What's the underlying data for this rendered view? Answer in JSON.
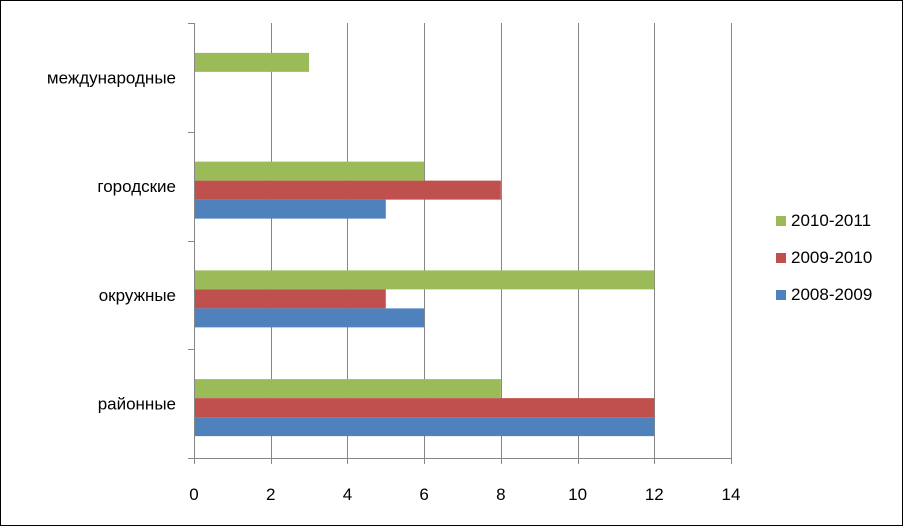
{
  "chart_data": {
    "type": "bar",
    "orientation": "horizontal",
    "categories": [
      "районные",
      "окружные",
      "городские",
      "международные"
    ],
    "series": [
      {
        "name": "2008-2009",
        "values": [
          12,
          6,
          5,
          null
        ],
        "color": "#4f81bd"
      },
      {
        "name": "2009-2010",
        "values": [
          12,
          5,
          8,
          null
        ],
        "color": "#c0504d"
      },
      {
        "name": "2010-2011",
        "values": [
          8,
          12,
          6,
          3
        ],
        "color": "#9bbb59"
      }
    ],
    "xlim": [
      0,
      14
    ],
    "xticks": [
      0,
      2,
      4,
      6,
      8,
      10,
      12,
      14
    ],
    "grid": "vertical",
    "legend_position": "right",
    "legend_order": [
      "2010-2011",
      "2009-2010",
      "2008-2009"
    ],
    "title": "",
    "xlabel": "",
    "ylabel": ""
  }
}
